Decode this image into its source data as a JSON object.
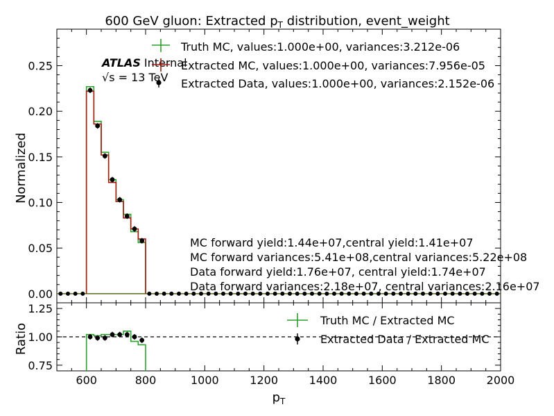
{
  "chart_data": {
    "type": "histogram",
    "title_main": "600 GeV gluon: Extracted p",
    "title_sub": "T",
    "title_rest": " distribution, event_weight",
    "xlabel_main": "p",
    "xlabel_sub": "T",
    "ylabel_top": "Normalized",
    "ylabel_bottom": "Ratio",
    "atlas_label": "ATLAS",
    "atlas_status": "Internal",
    "energy_label": "√s =  13 TeV",
    "xlim": [
      500,
      2000
    ],
    "ylim_top": [
      -0.01,
      0.29
    ],
    "ylim_bottom": [
      0.7,
      1.3
    ],
    "xticks": [
      600,
      800,
      1000,
      1200,
      1400,
      1600,
      1800,
      2000
    ],
    "yticks_top": [
      "0.00",
      "0.05",
      "0.10",
      "0.15",
      "0.20",
      "0.25"
    ],
    "yticks_top_values": [
      0.0,
      0.05,
      0.1,
      0.15,
      0.2,
      0.25
    ],
    "yticks_bottom": [
      "0.75",
      "1.00",
      "1.25"
    ],
    "yticks_bottom_values": [
      0.75,
      1.0,
      1.25
    ],
    "bin_width": 25,
    "bin_start": 500,
    "bin_end": 2000,
    "signal_edges": [
      600,
      625,
      650,
      675,
      700,
      725,
      750,
      775,
      800
    ],
    "truth_mc": [
      0.227,
      0.189,
      0.155,
      0.125,
      0.103,
      0.087,
      0.068,
      0.056
    ],
    "extracted_mc": [
      0.222,
      0.186,
      0.152,
      0.122,
      0.101,
      0.083,
      0.071,
      0.06
    ],
    "extracted_data": [
      0.223,
      0.184,
      0.151,
      0.125,
      0.103,
      0.085,
      0.071,
      0.058
    ],
    "ratio_truth": [
      1.02,
      1.01,
      1.02,
      1.02,
      1.02,
      1.05,
      0.96,
      0.93
    ],
    "ratio_data": [
      1.0,
      0.99,
      0.99,
      1.02,
      1.02,
      1.02,
      1.0,
      0.97
    ],
    "ratio_reference": 1.0,
    "legend_top": [
      {
        "label": "Truth MC, values:1.000e+00, variances:3.212e-06",
        "color": "#2ca02c",
        "style": "line-error"
      },
      {
        "label": "Extracted MC, values:1.000e+00, variances:7.956e-05",
        "color": "#a21b0f",
        "style": "line-error"
      },
      {
        "label": "Extracted Data, values:1.000e+00, variances:2.152e-06",
        "color": "#000000",
        "style": "marker"
      }
    ],
    "legend_bottom": [
      {
        "label": "Truth MC / Extracted MC",
        "color": "#2ca02c",
        "style": "line-error"
      },
      {
        "label": "Extracted Data / Extracted MC",
        "color": "#000000",
        "style": "marker"
      }
    ],
    "annotations": [
      "MC forward yield:1.44e+07,central yield:1.41e+07",
      "MC forward variances:5.41e+08,central variances:5.22e+08",
      "Data forward yield:1.76e+07, central yield:1.74e+07",
      "Data forward variances:2.18e+07, central variances:2.16e+07"
    ],
    "colors": {
      "truth": "#2ca02c",
      "mc": "#a21b0f",
      "data": "#000000",
      "axes": "#000000"
    }
  }
}
